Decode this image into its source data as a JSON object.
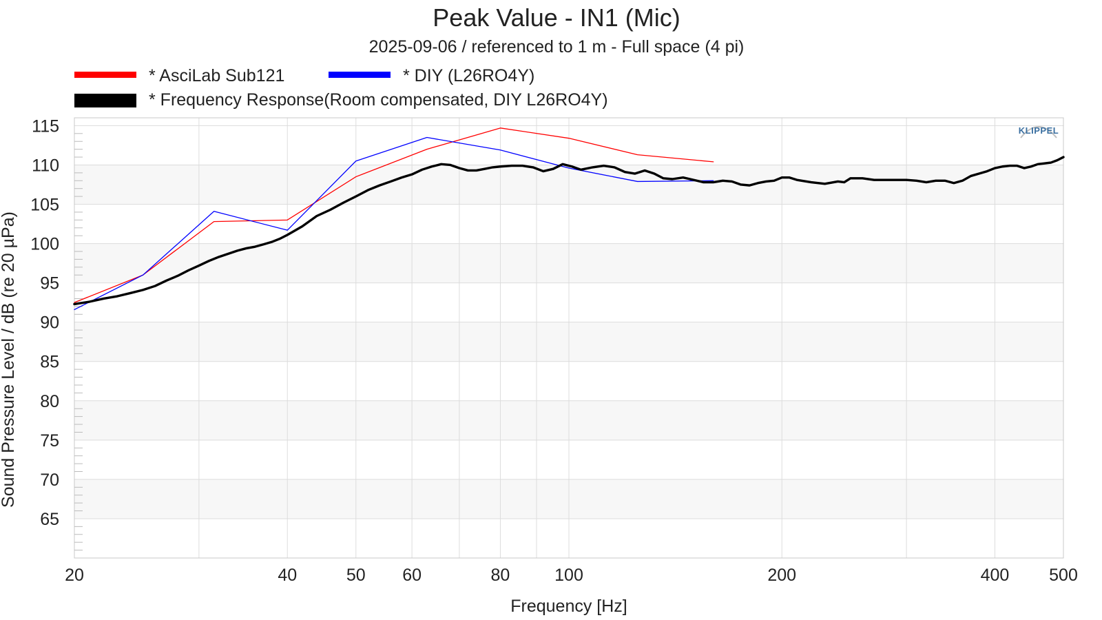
{
  "chart_data": {
    "type": "line",
    "title": "Peak Value - IN1 (Mic)",
    "subtitle": "2025-09-06 / referenced to 1 m - Full space (4 pi)",
    "xlabel": "Frequency [Hz]",
    "ylabel": "Sound Pressure Level / dB (re 20 µPa)",
    "xscale": "log",
    "xlim": [
      20,
      500
    ],
    "ylim": [
      60,
      116
    ],
    "xticks": [
      20,
      40,
      50,
      60,
      80,
      100,
      200,
      400,
      500
    ],
    "yticks": [
      65,
      70,
      75,
      80,
      85,
      90,
      95,
      100,
      105,
      110,
      115
    ],
    "grid": true,
    "legend_position": "top-left",
    "logo": "KLIPPEL",
    "series": [
      {
        "name": "* AsciLab Sub121",
        "color": "#ff0000",
        "points": [
          [
            20,
            92.5
          ],
          [
            25,
            96
          ],
          [
            31.5,
            102.8
          ],
          [
            40,
            103
          ],
          [
            50,
            108.5
          ],
          [
            63,
            112
          ],
          [
            80,
            114.7
          ],
          [
            100,
            113.4
          ],
          [
            125,
            111.3
          ],
          [
            160,
            110.4
          ]
        ]
      },
      {
        "name": "* DIY (L26RO4Y)",
        "color": "#0000ff",
        "points": [
          [
            20,
            91.6
          ],
          [
            25,
            96
          ],
          [
            31.5,
            104.1
          ],
          [
            40,
            101.7
          ],
          [
            50,
            110.5
          ],
          [
            63,
            113.5
          ],
          [
            80,
            111.9
          ],
          [
            100,
            109.6
          ],
          [
            125,
            107.9
          ],
          [
            160,
            108
          ]
        ]
      },
      {
        "name": "* Frequency Response(Room compensated, DIY L26RO4Y)",
        "color": "#000000",
        "points": [
          [
            20,
            92.3
          ],
          [
            21,
            92.6
          ],
          [
            22,
            93
          ],
          [
            23,
            93.3
          ],
          [
            24,
            93.7
          ],
          [
            25,
            94.1
          ],
          [
            26,
            94.6
          ],
          [
            27,
            95.3
          ],
          [
            28,
            95.9
          ],
          [
            29,
            96.6
          ],
          [
            30,
            97.2
          ],
          [
            31,
            97.8
          ],
          [
            32,
            98.3
          ],
          [
            33,
            98.7
          ],
          [
            34,
            99.1
          ],
          [
            35,
            99.4
          ],
          [
            36,
            99.6
          ],
          [
            37,
            99.9
          ],
          [
            38,
            100.2
          ],
          [
            39,
            100.6
          ],
          [
            40,
            101.1
          ],
          [
            42,
            102.2
          ],
          [
            44,
            103.5
          ],
          [
            46,
            104.3
          ],
          [
            48,
            105.2
          ],
          [
            50,
            106
          ],
          [
            52,
            106.8
          ],
          [
            54,
            107.4
          ],
          [
            56,
            107.9
          ],
          [
            58,
            108.4
          ],
          [
            60,
            108.8
          ],
          [
            62,
            109.4
          ],
          [
            64,
            109.8
          ],
          [
            66,
            110.1
          ],
          [
            68,
            110
          ],
          [
            70,
            109.6
          ],
          [
            72,
            109.3
          ],
          [
            74,
            109.3
          ],
          [
            76,
            109.5
          ],
          [
            78,
            109.7
          ],
          [
            80,
            109.8
          ],
          [
            83,
            109.9
          ],
          [
            86,
            109.9
          ],
          [
            89,
            109.7
          ],
          [
            92,
            109.2
          ],
          [
            95,
            109.5
          ],
          [
            98,
            110.1
          ],
          [
            101,
            109.8
          ],
          [
            104,
            109.4
          ],
          [
            108,
            109.7
          ],
          [
            112,
            109.9
          ],
          [
            116,
            109.7
          ],
          [
            120,
            109.1
          ],
          [
            124,
            108.9
          ],
          [
            128,
            109.3
          ],
          [
            132,
            108.9
          ],
          [
            136,
            108.3
          ],
          [
            140,
            108.2
          ],
          [
            145,
            108.4
          ],
          [
            150,
            108.1
          ],
          [
            155,
            107.8
          ],
          [
            160,
            107.8
          ],
          [
            165,
            108
          ],
          [
            170,
            107.9
          ],
          [
            175,
            107.5
          ],
          [
            180,
            107.4
          ],
          [
            185,
            107.7
          ],
          [
            190,
            107.9
          ],
          [
            195,
            108
          ],
          [
            200,
            108.4
          ],
          [
            205,
            108.4
          ],
          [
            210,
            108.1
          ],
          [
            220,
            107.8
          ],
          [
            230,
            107.6
          ],
          [
            240,
            107.9
          ],
          [
            245,
            107.8
          ],
          [
            250,
            108.3
          ],
          [
            260,
            108.3
          ],
          [
            270,
            108.1
          ],
          [
            280,
            108.1
          ],
          [
            290,
            108.1
          ],
          [
            300,
            108.1
          ],
          [
            310,
            108
          ],
          [
            320,
            107.8
          ],
          [
            330,
            108
          ],
          [
            340,
            108
          ],
          [
            350,
            107.7
          ],
          [
            360,
            108
          ],
          [
            370,
            108.6
          ],
          [
            380,
            108.9
          ],
          [
            390,
            109.2
          ],
          [
            400,
            109.6
          ],
          [
            410,
            109.8
          ],
          [
            420,
            109.9
          ],
          [
            430,
            109.9
          ],
          [
            440,
            109.6
          ],
          [
            450,
            109.8
          ],
          [
            460,
            110.1
          ],
          [
            470,
            110.2
          ],
          [
            480,
            110.3
          ],
          [
            490,
            110.6
          ],
          [
            500,
            111
          ]
        ]
      }
    ]
  }
}
